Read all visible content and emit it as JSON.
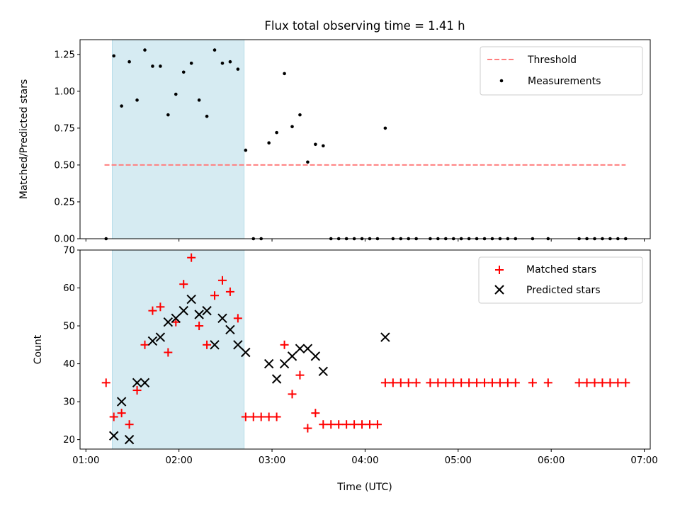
{
  "chart_data": [
    {
      "type": "scatter",
      "title": "Flux total observing time = 1.41 h",
      "ylabel": "Matched/Predicted stars",
      "xlabel": "",
      "ylim": [
        0,
        1.35
      ],
      "xlim": [
        "01:00",
        "07:00"
      ],
      "yticks": [
        "0.00",
        "0.25",
        "0.50",
        "0.75",
        "1.00",
        "1.25"
      ],
      "shaded_region": [
        "01:17",
        "02:42"
      ],
      "legend_position": "upper right",
      "series": [
        {
          "name": "Threshold",
          "kind": "dashed-line",
          "color": "#ff7f7f",
          "x": [
            "01:12",
            "06:48"
          ],
          "y": [
            0.5,
            0.5
          ]
        },
        {
          "name": "Measurements",
          "kind": "dot",
          "color": "#000000",
          "points": [
            [
              "01:13",
              0.0
            ],
            [
              "01:18",
              1.24
            ],
            [
              "01:23",
              0.9
            ],
            [
              "01:28",
              1.2
            ],
            [
              "01:33",
              0.94
            ],
            [
              "01:38",
              1.28
            ],
            [
              "01:43",
              1.17
            ],
            [
              "01:48",
              1.17
            ],
            [
              "01:53",
              0.84
            ],
            [
              "01:58",
              0.98
            ],
            [
              "02:03",
              1.13
            ],
            [
              "02:08",
              1.19
            ],
            [
              "02:13",
              0.94
            ],
            [
              "02:18",
              0.83
            ],
            [
              "02:23",
              1.28
            ],
            [
              "02:28",
              1.19
            ],
            [
              "02:33",
              1.2
            ],
            [
              "02:38",
              1.15
            ],
            [
              "02:43",
              0.6
            ],
            [
              "02:48",
              0.0
            ],
            [
              "02:53",
              0.0
            ],
            [
              "02:58",
              0.65
            ],
            [
              "03:03",
              0.72
            ],
            [
              "03:08",
              1.12
            ],
            [
              "03:13",
              0.76
            ],
            [
              "03:18",
              0.84
            ],
            [
              "03:23",
              0.52
            ],
            [
              "03:28",
              0.64
            ],
            [
              "03:33",
              0.63
            ],
            [
              "03:38",
              0.0
            ],
            [
              "03:43",
              0.0
            ],
            [
              "03:48",
              0.0
            ],
            [
              "03:53",
              0.0
            ],
            [
              "03:58",
              0.0
            ],
            [
              "04:03",
              0.0
            ],
            [
              "04:08",
              0.0
            ],
            [
              "04:13",
              0.75
            ],
            [
              "04:18",
              0.0
            ],
            [
              "04:23",
              0.0
            ],
            [
              "04:28",
              0.0
            ],
            [
              "04:33",
              0.0
            ],
            [
              "04:42",
              0.0
            ],
            [
              "04:47",
              0.0
            ],
            [
              "04:52",
              0.0
            ],
            [
              "04:57",
              0.0
            ],
            [
              "05:02",
              0.0
            ],
            [
              "05:07",
              0.0
            ],
            [
              "05:12",
              0.0
            ],
            [
              "05:17",
              0.0
            ],
            [
              "05:22",
              0.0
            ],
            [
              "05:27",
              0.0
            ],
            [
              "05:32",
              0.0
            ],
            [
              "05:37",
              0.0
            ],
            [
              "05:48",
              0.0
            ],
            [
              "05:58",
              0.0
            ],
            [
              "06:18",
              0.0
            ],
            [
              "06:23",
              0.0
            ],
            [
              "06:28",
              0.0
            ],
            [
              "06:33",
              0.0
            ],
            [
              "06:38",
              0.0
            ],
            [
              "06:43",
              0.0
            ],
            [
              "06:48",
              0.0
            ]
          ]
        }
      ]
    },
    {
      "type": "scatter",
      "title": "",
      "xlabel": "Time (UTC)",
      "ylabel": "Count",
      "ylim": [
        17.5,
        70
      ],
      "xlim": [
        "01:00",
        "07:00"
      ],
      "yticks": [
        "20",
        "30",
        "40",
        "50",
        "60",
        "70"
      ],
      "xticks": [
        "01:00",
        "02:00",
        "03:00",
        "04:00",
        "05:00",
        "06:00",
        "07:00"
      ],
      "shaded_region": [
        "01:17",
        "02:42"
      ],
      "legend_position": "upper right",
      "series": [
        {
          "name": "Matched stars",
          "kind": "plus",
          "color": "#ff0000",
          "points": [
            [
              "01:13",
              35
            ],
            [
              "01:18",
              26
            ],
            [
              "01:23",
              27
            ],
            [
              "01:28",
              24
            ],
            [
              "01:33",
              33
            ],
            [
              "01:38",
              45
            ],
            [
              "01:43",
              54
            ],
            [
              "01:48",
              55
            ],
            [
              "01:53",
              43
            ],
            [
              "01:58",
              51
            ],
            [
              "02:03",
              61
            ],
            [
              "02:08",
              68
            ],
            [
              "02:13",
              50
            ],
            [
              "02:18",
              45
            ],
            [
              "02:23",
              58
            ],
            [
              "02:28",
              62
            ],
            [
              "02:33",
              59
            ],
            [
              "02:38",
              52
            ],
            [
              "02:43",
              26
            ],
            [
              "02:48",
              26
            ],
            [
              "02:53",
              26
            ],
            [
              "02:58",
              26
            ],
            [
              "03:03",
              26
            ],
            [
              "03:08",
              45
            ],
            [
              "03:13",
              32
            ],
            [
              "03:18",
              37
            ],
            [
              "03:23",
              23
            ],
            [
              "03:28",
              27
            ],
            [
              "03:33",
              24
            ],
            [
              "03:38",
              24
            ],
            [
              "03:43",
              24
            ],
            [
              "03:48",
              24
            ],
            [
              "03:53",
              24
            ],
            [
              "03:58",
              24
            ],
            [
              "04:03",
              24
            ],
            [
              "04:08",
              24
            ],
            [
              "04:13",
              35
            ],
            [
              "04:18",
              35
            ],
            [
              "04:23",
              35
            ],
            [
              "04:28",
              35
            ],
            [
              "04:33",
              35
            ],
            [
              "04:42",
              35
            ],
            [
              "04:47",
              35
            ],
            [
              "04:52",
              35
            ],
            [
              "04:57",
              35
            ],
            [
              "05:02",
              35
            ],
            [
              "05:07",
              35
            ],
            [
              "05:12",
              35
            ],
            [
              "05:17",
              35
            ],
            [
              "05:22",
              35
            ],
            [
              "05:27",
              35
            ],
            [
              "05:32",
              35
            ],
            [
              "05:37",
              35
            ],
            [
              "05:48",
              35
            ],
            [
              "05:58",
              35
            ],
            [
              "06:18",
              35
            ],
            [
              "06:23",
              35
            ],
            [
              "06:28",
              35
            ],
            [
              "06:33",
              35
            ],
            [
              "06:38",
              35
            ],
            [
              "06:43",
              35
            ],
            [
              "06:48",
              35
            ]
          ]
        },
        {
          "name": "Predicted stars",
          "kind": "x",
          "color": "#000000",
          "points": [
            [
              "01:18",
              21
            ],
            [
              "01:23",
              30
            ],
            [
              "01:28",
              20
            ],
            [
              "01:33",
              35
            ],
            [
              "01:38",
              35
            ],
            [
              "01:43",
              46
            ],
            [
              "01:48",
              47
            ],
            [
              "01:53",
              51
            ],
            [
              "01:58",
              52
            ],
            [
              "02:03",
              54
            ],
            [
              "02:08",
              57
            ],
            [
              "02:13",
              53
            ],
            [
              "02:18",
              54
            ],
            [
              "02:23",
              45
            ],
            [
              "02:28",
              52
            ],
            [
              "02:33",
              49
            ],
            [
              "02:38",
              45
            ],
            [
              "02:43",
              43
            ],
            [
              "02:58",
              40
            ],
            [
              "03:03",
              36
            ],
            [
              "03:08",
              40
            ],
            [
              "03:13",
              42
            ],
            [
              "03:18",
              44
            ],
            [
              "03:23",
              44
            ],
            [
              "03:28",
              42
            ],
            [
              "03:33",
              38
            ],
            [
              "04:13",
              47
            ]
          ]
        }
      ]
    }
  ]
}
